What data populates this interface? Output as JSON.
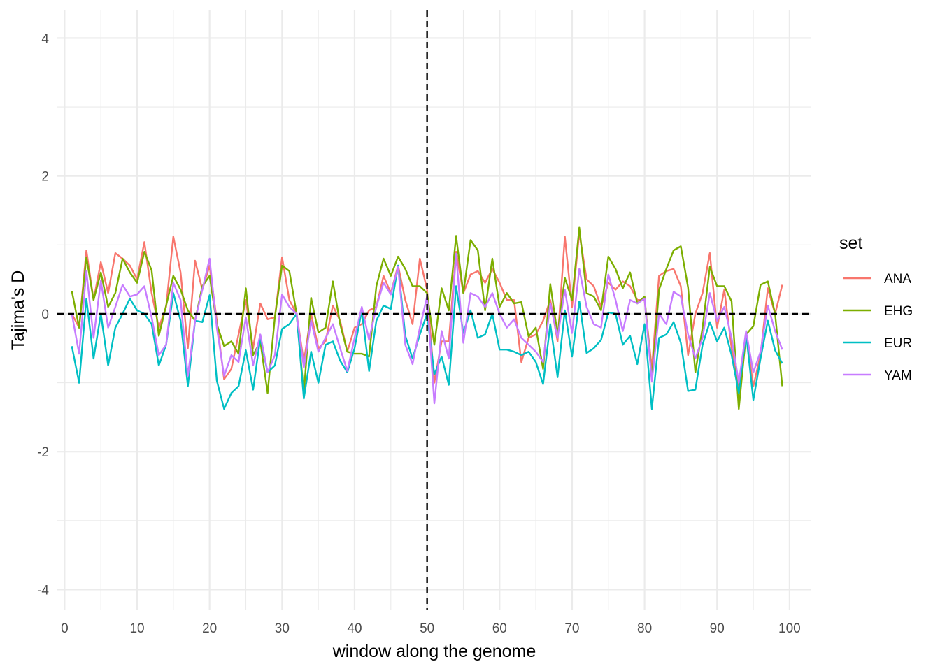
{
  "chart_data": {
    "type": "line",
    "xlabel": "window along the genome",
    "ylabel": "Tajima's D",
    "xlim": [
      -1,
      103
    ],
    "ylim": [
      -4.3,
      4.4
    ],
    "x_ticks": [
      0,
      10,
      20,
      30,
      40,
      50,
      60,
      70,
      80,
      90,
      100
    ],
    "y_ticks": [
      -4,
      -2,
      0,
      2,
      4
    ],
    "y_tick_labels": [
      "-4",
      "-2",
      "0",
      "2",
      "4"
    ],
    "grid": true,
    "reference_lines": {
      "horizontal_y": 0,
      "vertical_x": 50,
      "style": "dashed",
      "color": "#000000"
    },
    "legend": {
      "title": "set",
      "position": "right"
    },
    "x": [
      1,
      2,
      3,
      4,
      5,
      6,
      7,
      8,
      9,
      10,
      11,
      12,
      13,
      14,
      15,
      16,
      17,
      18,
      19,
      20,
      21,
      22,
      23,
      24,
      25,
      26,
      27,
      28,
      29,
      30,
      31,
      32,
      33,
      34,
      35,
      36,
      37,
      38,
      39,
      40,
      41,
      42,
      43,
      44,
      45,
      46,
      47,
      48,
      49,
      50,
      51,
      52,
      53,
      54,
      55,
      56,
      57,
      58,
      59,
      60,
      61,
      62,
      63,
      64,
      65,
      66,
      67,
      68,
      69,
      70,
      71,
      72,
      73,
      74,
      75,
      76,
      77,
      78,
      79,
      80,
      81,
      82,
      83,
      84,
      85,
      86,
      87,
      88,
      89,
      90,
      91,
      92,
      93,
      94,
      95,
      96,
      97,
      98,
      99
    ],
    "series": [
      {
        "name": "ANA",
        "color": "#F8766D",
        "values": [
          0.0,
          -0.2,
          0.92,
          0.2,
          0.75,
          0.3,
          0.88,
          0.8,
          0.7,
          0.5,
          1.04,
          0.3,
          -0.2,
          0.1,
          1.12,
          0.6,
          -0.5,
          0.77,
          0.35,
          0.7,
          -0.1,
          -0.95,
          -0.8,
          -0.3,
          0.2,
          -0.5,
          0.15,
          -0.08,
          -0.05,
          0.82,
          0.2,
          0.0,
          -0.7,
          0.0,
          -0.5,
          -0.4,
          0.12,
          -0.1,
          -0.55,
          -0.2,
          -0.15,
          0.05,
          0.1,
          0.55,
          0.3,
          0.7,
          0.2,
          -0.15,
          0.8,
          0.35,
          -1.0,
          -0.4,
          -0.4,
          0.9,
          0.3,
          0.57,
          0.62,
          0.45,
          0.65,
          0.45,
          0.2,
          0.2,
          -0.7,
          -0.35,
          -0.3,
          -0.1,
          0.2,
          -0.4,
          1.12,
          0.1,
          1.18,
          0.5,
          0.4,
          0.1,
          0.45,
          0.35,
          0.47,
          0.4,
          0.2,
          0.2,
          -0.8,
          0.55,
          0.62,
          0.65,
          0.4,
          -0.6,
          0.0,
          0.3,
          0.88,
          -0.2,
          0.35,
          -0.5,
          -1.05,
          -0.3,
          -1.05,
          -0.6,
          0.37,
          0.0,
          0.42
        ]
      },
      {
        "name": "EHG",
        "color": "#7CAE00",
        "values": [
          0.33,
          -0.2,
          0.82,
          0.2,
          0.6,
          0.1,
          0.3,
          0.8,
          0.6,
          0.45,
          0.9,
          0.63,
          -0.32,
          0.12,
          0.55,
          0.35,
          0.05,
          -0.1,
          0.4,
          0.55,
          -0.15,
          -0.47,
          -0.4,
          -0.58,
          0.37,
          -0.6,
          -0.4,
          -1.15,
          -0.05,
          0.7,
          0.62,
          0.0,
          -1.15,
          0.23,
          -0.27,
          -0.2,
          0.47,
          -0.15,
          -0.55,
          -0.58,
          -0.58,
          -0.62,
          0.4,
          0.8,
          0.55,
          0.83,
          0.65,
          0.4,
          0.4,
          0.3,
          -0.45,
          0.37,
          0.05,
          1.13,
          0.3,
          1.07,
          0.92,
          0.05,
          0.8,
          0.1,
          0.3,
          0.15,
          0.17,
          -0.33,
          -0.2,
          -0.8,
          0.43,
          -0.3,
          0.52,
          0.2,
          1.25,
          0.3,
          0.25,
          0.05,
          0.83,
          0.65,
          0.37,
          0.6,
          0.15,
          0.25,
          -0.95,
          0.35,
          0.65,
          0.92,
          0.98,
          0.38,
          -0.85,
          -0.2,
          0.68,
          0.4,
          0.4,
          0.18,
          -1.38,
          -0.3,
          -0.18,
          0.42,
          0.47,
          0.0,
          -1.05
        ]
      },
      {
        "name": "EUR",
        "color": "#00BFC4",
        "values": [
          -0.47,
          -1.0,
          0.22,
          -0.65,
          0.0,
          -0.75,
          -0.2,
          0.0,
          0.22,
          0.05,
          0.0,
          -0.15,
          -0.75,
          -0.45,
          0.3,
          -0.1,
          -1.05,
          -0.1,
          -0.12,
          0.27,
          -0.97,
          -1.38,
          -1.15,
          -1.05,
          -0.53,
          -1.1,
          -0.35,
          -0.85,
          -0.75,
          -0.22,
          -0.15,
          0.0,
          -1.23,
          -0.55,
          -1.0,
          -0.45,
          -0.4,
          -0.68,
          -0.85,
          -0.5,
          0.05,
          -0.83,
          -0.1,
          0.12,
          0.07,
          0.7,
          -0.32,
          -0.65,
          -0.3,
          0.0,
          -0.88,
          -0.62,
          -1.03,
          0.4,
          -0.28,
          0.05,
          -0.35,
          -0.3,
          0.0,
          -0.52,
          -0.52,
          -0.55,
          -0.6,
          -0.55,
          -0.7,
          -1.02,
          -0.15,
          -0.92,
          0.05,
          -0.62,
          0.18,
          -0.57,
          -0.5,
          -0.38,
          0.02,
          0.0,
          -0.45,
          -0.32,
          -0.73,
          -0.15,
          -1.38,
          -0.35,
          -0.3,
          -0.12,
          -0.42,
          -1.12,
          -1.1,
          -0.45,
          -0.12,
          -0.4,
          -0.2,
          -0.6,
          -1.15,
          -0.28,
          -1.25,
          -0.65,
          -0.1,
          -0.53,
          -0.72
        ]
      },
      {
        "name": "YAM",
        "color": "#C77CFF",
        "values": [
          0.0,
          -0.58,
          0.62,
          -0.35,
          0.48,
          -0.2,
          0.1,
          0.42,
          0.25,
          0.28,
          0.4,
          -0.05,
          -0.6,
          -0.45,
          0.45,
          0.2,
          -0.9,
          -0.1,
          0.35,
          0.8,
          -0.2,
          -0.9,
          -0.6,
          -0.7,
          -0.05,
          -0.75,
          -0.3,
          -0.85,
          -0.6,
          0.28,
          0.1,
          0.0,
          -0.78,
          -0.1,
          -0.55,
          -0.35,
          -0.15,
          -0.5,
          -0.83,
          -0.35,
          0.1,
          -0.38,
          0.1,
          0.45,
          0.28,
          0.68,
          -0.45,
          -0.73,
          -0.2,
          0.25,
          -1.3,
          -0.25,
          -0.65,
          0.87,
          -0.42,
          0.3,
          0.25,
          0.1,
          0.3,
          0.0,
          -0.2,
          -0.08,
          -0.35,
          -0.45,
          -0.55,
          -0.7,
          0.15,
          -0.35,
          0.35,
          -0.28,
          0.65,
          0.1,
          -0.15,
          -0.2,
          0.57,
          0.2,
          -0.25,
          0.2,
          0.15,
          0.22,
          -0.98,
          0.0,
          -0.15,
          0.32,
          0.25,
          -0.3,
          -0.65,
          -0.35,
          0.3,
          -0.1,
          0.1,
          -0.35,
          -1.0,
          -0.25,
          -0.85,
          -0.55,
          0.12,
          -0.25,
          -0.52
        ]
      }
    ]
  }
}
